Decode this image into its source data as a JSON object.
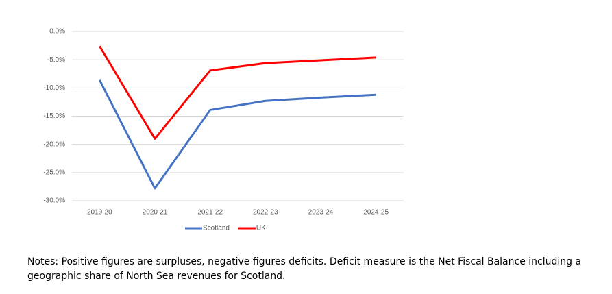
{
  "chart_data": {
    "type": "line",
    "categories": [
      "2019-20",
      "2020-21",
      "2021-22",
      "2022-23",
      "2023-24",
      "2024-25"
    ],
    "series": [
      {
        "name": "Scotland",
        "color": "#4472c4",
        "values": [
          -8.6,
          -27.8,
          -13.9,
          -12.3,
          -11.7,
          -11.2
        ]
      },
      {
        "name": "UK",
        "color": "#ff0000",
        "values": [
          -2.6,
          -19.0,
          -6.9,
          -5.6,
          -5.1,
          -4.6
        ]
      }
    ],
    "ylim": [
      -30,
      0
    ],
    "yticks": [
      {
        "value": 0,
        "label": "0.0%"
      },
      {
        "value": -5,
        "label": "-5.0%"
      },
      {
        "value": -10,
        "label": "-10.0%"
      },
      {
        "value": -15,
        "label": "-15.0%"
      },
      {
        "value": -20,
        "label": "-20.0%"
      },
      {
        "value": -25,
        "label": "-25.0%"
      },
      {
        "value": -30,
        "label": "-30.0%"
      }
    ],
    "grid": true,
    "legend": "bottom",
    "note": "Notes: Positive figures are surpluses, negative figures deficits. Deficit measure is the Net Fiscal Balance including a geographic share of North Sea revenues for Scotland."
  }
}
